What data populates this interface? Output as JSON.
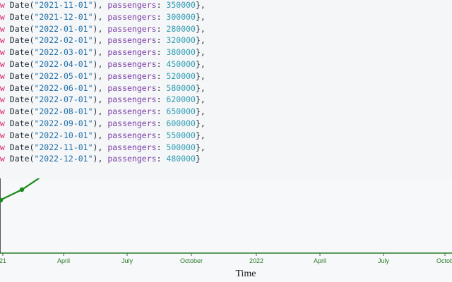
{
  "code": {
    "keyword": "ew",
    "func": "Date",
    "prop": "passengers",
    "lines": [
      {
        "date": "2021-11-01",
        "value": "350000",
        "end": "},"
      },
      {
        "date": "2021-12-01",
        "value": "300000",
        "end": "},"
      },
      {
        "date": "2022-01-01",
        "value": "280000",
        "end": "},"
      },
      {
        "date": "2022-02-01",
        "value": "320000",
        "end": "},"
      },
      {
        "date": "2022-03-01",
        "value": "380000",
        "end": "},"
      },
      {
        "date": "2022-04-01",
        "value": "450000",
        "end": "},"
      },
      {
        "date": "2022-05-01",
        "value": "520000",
        "end": "},"
      },
      {
        "date": "2022-06-01",
        "value": "580000",
        "end": "},"
      },
      {
        "date": "2022-07-01",
        "value": "620000",
        "end": "},"
      },
      {
        "date": "2022-08-01",
        "value": "650000",
        "end": "},"
      },
      {
        "date": "2022-09-01",
        "value": "600000",
        "end": "},"
      },
      {
        "date": "2022-10-01",
        "value": "550000",
        "end": "},"
      },
      {
        "date": "2022-11-01",
        "value": "500000",
        "end": "},"
      },
      {
        "date": "2022-12-01",
        "value": "480000",
        "end": "}"
      }
    ]
  },
  "chart_data": {
    "type": "line",
    "xlabel": "Time",
    "ylabel": "",
    "x_ticks": [
      "21",
      "April",
      "July",
      "October",
      "2022",
      "April",
      "July",
      "Octob"
    ],
    "series": [
      {
        "color": "#1a8a1a",
        "points": [
          {
            "x": "2021-01-01",
            "y": null
          },
          {
            "x": "2021-02-01",
            "y": null
          },
          {
            "x": "2021-03-01",
            "y": null
          }
        ]
      }
    ],
    "colors": {
      "line": "#1a8a1a",
      "axis": "#2a7a2a"
    }
  }
}
